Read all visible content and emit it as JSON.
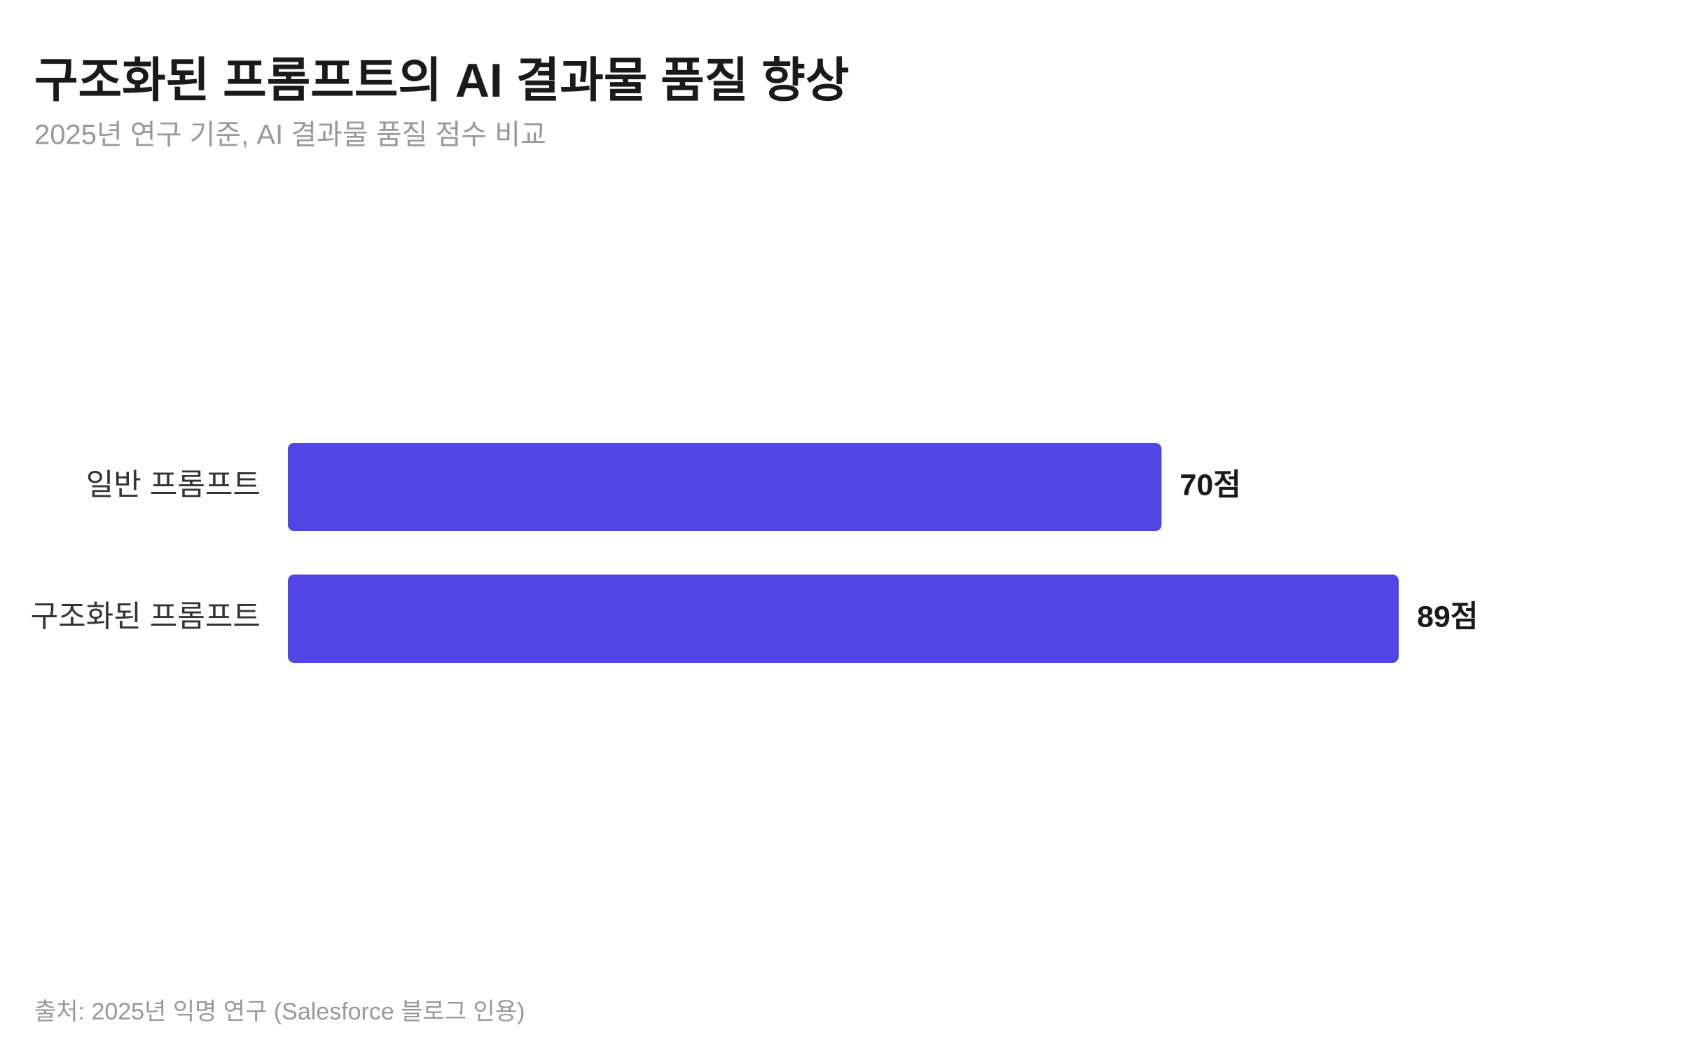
{
  "chart_data": {
    "type": "bar",
    "orientation": "horizontal",
    "title": "구조화된 프롬프트의 AI 결과물 품질 향상",
    "subtitle": "2025년 연구 기준, AI 결과물 품질 점수 비교",
    "source": "출처: 2025년 익명 연구 (Salesforce 블로그 인용)",
    "categories": [
      "일반 프롬프트",
      "구조화된 프롬프트"
    ],
    "values": [
      70,
      89
    ],
    "value_labels": [
      "70점",
      "89점"
    ],
    "color": "#5046e5"
  }
}
